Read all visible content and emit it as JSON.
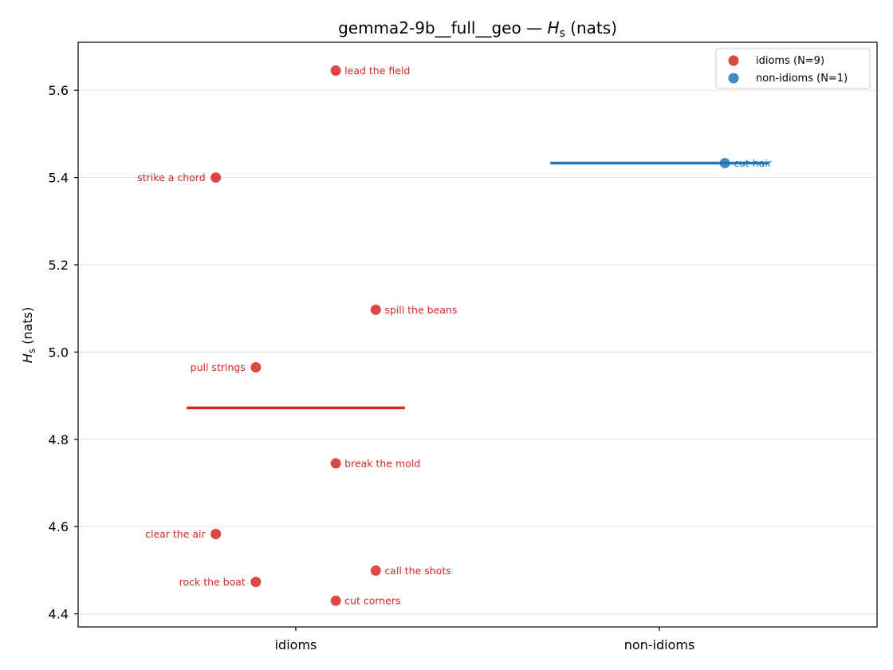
{
  "chart_data": {
    "type": "scatter",
    "title_prefix": "gemma2-9b__full__geo — ",
    "title_symbol": "H",
    "title_subscript": "s",
    "title_suffix": " (nats)",
    "ylabel_symbol": "H",
    "ylabel_subscript": "s",
    "ylabel_suffix": " (nats)",
    "categories": [
      "idioms",
      "non-idioms"
    ],
    "ylim": [
      4.37,
      5.71
    ],
    "yticks": [
      "4.4",
      "4.6",
      "4.8",
      "5.0",
      "5.2",
      "5.4",
      "5.6"
    ],
    "grid": "horizontal",
    "legend_position": "top-right",
    "series": [
      {
        "name": "idioms (N=9)",
        "color": "#d62728",
        "category": "idioms",
        "mean": 4.872,
        "points": [
          {
            "label": "lead the field",
            "y": 5.645,
            "offset": 0.11
          },
          {
            "label": "strike a chord",
            "y": 5.4,
            "offset": -0.22
          },
          {
            "label": "spill the beans",
            "y": 5.097,
            "offset": 0.22
          },
          {
            "label": "pull strings",
            "y": 4.965,
            "offset": -0.11
          },
          {
            "label": "break the mold",
            "y": 4.745,
            "offset": 0.11
          },
          {
            "label": "clear the air",
            "y": 4.583,
            "offset": -0.22
          },
          {
            "label": "call the shots",
            "y": 4.499,
            "offset": 0.22
          },
          {
            "label": "rock the boat",
            "y": 4.473,
            "offset": -0.11
          },
          {
            "label": "cut corners",
            "y": 4.43,
            "offset": 0.11
          }
        ]
      },
      {
        "name": "non-idioms (N=1)",
        "color": "#1f77b4",
        "category": "non-idioms",
        "mean": 5.433,
        "points": [
          {
            "label": "cut hair",
            "y": 5.433,
            "offset": 0.18
          }
        ]
      }
    ]
  }
}
